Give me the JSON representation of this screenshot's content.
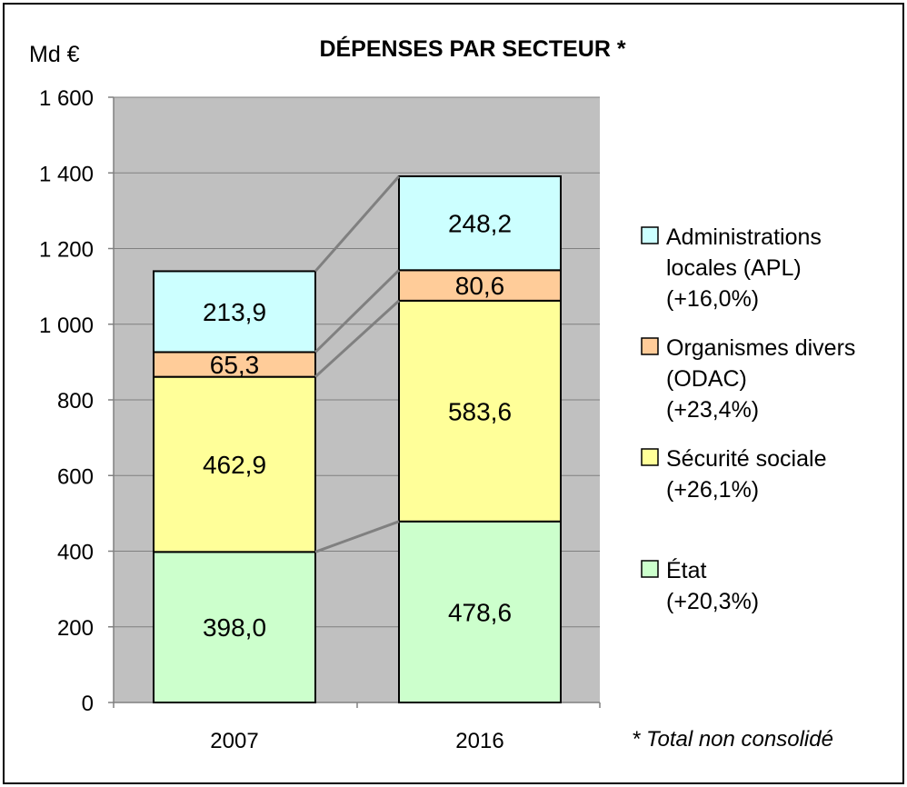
{
  "chart_data": {
    "type": "bar",
    "stacked": true,
    "title": "DÉPENSES PAR SECTEUR *",
    "ylabel": "Md €",
    "ylim": [
      0,
      1600
    ],
    "yticks": [
      0,
      200,
      400,
      600,
      800,
      1000,
      1200,
      1400,
      1600
    ],
    "ytick_labels": [
      "0",
      "200",
      "400",
      "600",
      "800",
      "1 000",
      "1 200",
      "1 400",
      "1 600"
    ],
    "grid": true,
    "categories": [
      "2007",
      "2016"
    ],
    "series": [
      {
        "name": "État",
        "change": "(+20,3%)",
        "color": "#ccffcc",
        "values": [
          398.0,
          478.6
        ],
        "labels": [
          "398,0",
          "478,6"
        ]
      },
      {
        "name": "Sécurité sociale",
        "change": "(+26,1%)",
        "color": "#ffff99",
        "values": [
          462.9,
          583.6
        ],
        "labels": [
          "462,9",
          "583,6"
        ]
      },
      {
        "name": "Organismes divers (ODAC)",
        "change": "(+23,4%)",
        "color": "#ffcc99",
        "values": [
          65.3,
          80.6
        ],
        "labels": [
          "65,3",
          "80,6"
        ]
      },
      {
        "name": "Administrations locales (APL)",
        "change": "(+16,0%)",
        "color": "#ccffff",
        "values": [
          213.9,
          248.2
        ],
        "labels": [
          "213,9",
          "248,2"
        ]
      }
    ],
    "legend": {
      "position": "right",
      "entries": [
        {
          "lines": [
            "Administrations",
            "locales (APL)",
            "(+16,0%)"
          ],
          "color": "#ccffff"
        },
        {
          "lines": [
            "Organismes divers",
            "(ODAC)",
            "(+23,4%)"
          ],
          "color": "#ffcc99"
        },
        {
          "lines": [
            "Sécurité sociale",
            "(+26,1%)"
          ],
          "color": "#ffff99"
        },
        {
          "lines": [
            "État",
            "(+20,3%)"
          ],
          "color": "#ccffcc"
        }
      ]
    },
    "footnote": "* Total non consolidé",
    "plot_background": "#c0c0c0"
  }
}
